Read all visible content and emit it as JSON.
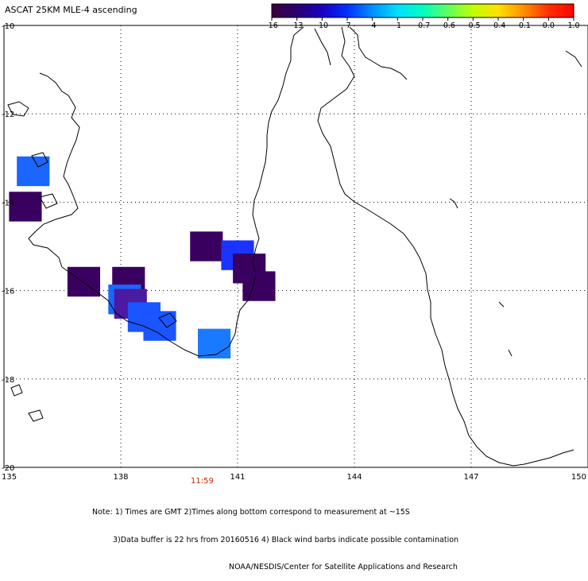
{
  "title": "ASCAT 25KM MLE-4 ascending",
  "colorbar": {
    "labels": [
      "-16",
      "-13",
      "-10",
      "-7",
      "-4",
      "-1",
      "-0.7",
      "-0.6",
      "-0.5",
      "-0.4",
      "-0.1",
      "0.0",
      "1.0"
    ],
    "colors": [
      "#3b003b",
      "#2a0070",
      "#1a00c0",
      "#0030ff",
      "#0090ff",
      "#00e0ff",
      "#00ffc0",
      "#60ff60",
      "#c0ff00",
      "#ffe000",
      "#ff9000",
      "#ff3000",
      "#ff0000"
    ]
  },
  "axes": {
    "lat_labels": [
      "-10",
      "-12",
      "-14",
      "-16",
      "-18",
      "-20"
    ],
    "lon_labels": [
      "135",
      "138",
      "141",
      "144",
      "147",
      "150"
    ]
  },
  "time_label": "11:59",
  "notes": [
    "Note: 1) Times are GMT 2)Times along bottom correspond to measurement at ~15S",
    "3)Data buffer is 22 hrs from 20160516 4) Black wind barbs indicate possible contamination",
    "NOAA/NESDIS/Center for Satellite Applications and Research"
  ],
  "cells": [
    {
      "lon": 135.75,
      "lat": -13.3,
      "color": "#1a66ff"
    },
    {
      "lon": 135.55,
      "lat": -14.1,
      "color": "#3a0060"
    },
    {
      "lon": 137.05,
      "lat": -15.8,
      "color": "#3a0060"
    },
    {
      "lon": 138.2,
      "lat": -15.8,
      "color": "#3a0060"
    },
    {
      "lon": 138.1,
      "lat": -16.2,
      "color": "#1a66ff"
    },
    {
      "lon": 138.25,
      "lat": -16.3,
      "color": "#4a1aa0"
    },
    {
      "lon": 138.6,
      "lat": -16.6,
      "color": "#1a55ff"
    },
    {
      "lon": 139.0,
      "lat": -16.8,
      "color": "#1a55ff"
    },
    {
      "lon": 140.4,
      "lat": -17.2,
      "color": "#1a7aff"
    },
    {
      "lon": 140.2,
      "lat": -15.0,
      "color": "#3a0060"
    },
    {
      "lon": 141.0,
      "lat": -15.2,
      "color": "#1a33ff"
    },
    {
      "lon": 141.3,
      "lat": -15.5,
      "color": "#3a0060"
    },
    {
      "lon": 141.55,
      "lat": -15.9,
      "color": "#3a0060"
    }
  ]
}
